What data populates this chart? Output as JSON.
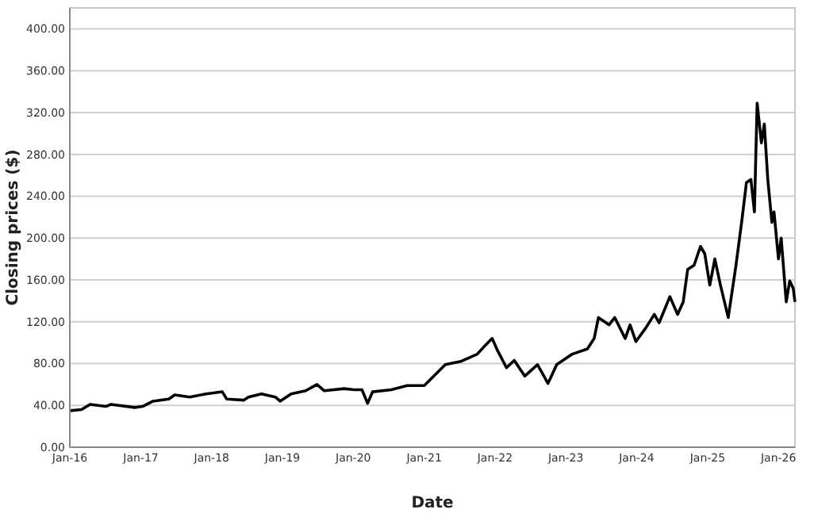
{
  "chart_data": {
    "type": "line",
    "xlabel": "Date",
    "ylabel": "Closing prices ($)",
    "xlim": [
      "2016-01-01",
      "2026-03-27"
    ],
    "ylim": [
      0,
      420
    ],
    "xticks": [
      {
        "value": "2016-01-01",
        "label": "Jan-16"
      },
      {
        "value": "2017-01-01",
        "label": "Jan-17"
      },
      {
        "value": "2018-01-01",
        "label": "Jan-18"
      },
      {
        "value": "2019-01-01",
        "label": "Jan-19"
      },
      {
        "value": "2020-01-01",
        "label": "Jan-20"
      },
      {
        "value": "2021-01-01",
        "label": "Jan-21"
      },
      {
        "value": "2022-01-01",
        "label": "Jan-22"
      },
      {
        "value": "2023-01-01",
        "label": "Jan-23"
      },
      {
        "value": "2024-01-01",
        "label": "Jan-24"
      },
      {
        "value": "2025-01-01",
        "label": "Jan-25"
      },
      {
        "value": "2026-01-01",
        "label": "Jan-26"
      }
    ],
    "yticks": [
      {
        "value": 0,
        "label": "0.00"
      },
      {
        "value": 40,
        "label": "40.00"
      },
      {
        "value": 80,
        "label": "80.00"
      },
      {
        "value": 120,
        "label": "120.00"
      },
      {
        "value": 160,
        "label": "160.00"
      },
      {
        "value": 200,
        "label": "200.00"
      },
      {
        "value": 240,
        "label": "240.00"
      },
      {
        "value": 280,
        "label": "280.00"
      },
      {
        "value": 320,
        "label": "320.00"
      },
      {
        "value": 360,
        "label": "360.00"
      },
      {
        "value": 400,
        "label": "400.00"
      }
    ],
    "grid": "y",
    "marker": "none",
    "line_style": "solid",
    "x": [
      "2016-01-04",
      "2016-03-01",
      "2016-04-15",
      "2016-07-05",
      "2016-08-01",
      "2016-12-01",
      "2017-01-10",
      "2017-03-05",
      "2017-05-25",
      "2017-06-25",
      "2017-09-10",
      "2017-12-05",
      "2018-02-25",
      "2018-03-20",
      "2018-06-15",
      "2018-07-10",
      "2018-09-15",
      "2018-11-25",
      "2018-12-20",
      "2019-02-15",
      "2019-05-01",
      "2019-06-28",
      "2019-08-05",
      "2019-11-15",
      "2020-01-05",
      "2020-02-15",
      "2020-03-15",
      "2020-04-10",
      "2020-07-15",
      "2020-10-05",
      "2021-01-01",
      "2021-04-20",
      "2021-07-08",
      "2021-10-01",
      "2021-11-10",
      "2021-12-17",
      "2022-01-15",
      "2022-03-01",
      "2022-04-10",
      "2022-06-03",
      "2022-08-08",
      "2022-10-01",
      "2022-11-15",
      "2023-02-03",
      "2023-04-22",
      "2023-05-27",
      "2023-06-18",
      "2023-08-12",
      "2023-09-10",
      "2023-11-03",
      "2023-11-28",
      "2023-12-28",
      "2024-02-17",
      "2024-04-01",
      "2024-04-26",
      "2024-06-20",
      "2024-07-30",
      "2024-08-28",
      "2024-09-20",
      "2024-10-23",
      "2024-11-25",
      "2024-12-17",
      "2025-01-12",
      "2025-02-07",
      "2025-03-08",
      "2025-04-17",
      "2025-05-27",
      "2025-06-25",
      "2025-07-20",
      "2025-08-12",
      "2025-08-30",
      "2025-09-13",
      "2025-10-05",
      "2025-10-20",
      "2025-11-07",
      "2025-11-28",
      "2025-12-09",
      "2026-01-01",
      "2026-01-15",
      "2026-02-10",
      "2026-02-28",
      "2026-03-18",
      "2026-03-27"
    ],
    "series": [
      {
        "color": "#000000",
        "values": [
          35,
          36,
          41,
          39,
          41,
          38,
          39,
          44,
          46,
          50,
          48,
          51,
          53,
          46,
          45,
          48,
          51,
          48,
          44,
          51,
          54,
          60,
          54,
          56,
          55,
          55,
          42,
          53,
          55,
          59,
          59,
          79,
          82,
          89,
          97,
          104,
          92,
          76,
          83,
          68,
          79,
          61,
          79,
          89,
          94,
          104,
          124,
          117,
          124,
          104,
          117,
          101,
          114,
          127,
          119,
          144,
          127,
          139,
          170,
          174,
          192,
          185,
          155,
          180,
          155,
          124,
          174,
          215,
          253,
          256,
          225,
          329,
          291,
          309,
          256,
          215,
          225,
          180,
          200,
          139,
          159,
          152,
          139
        ]
      }
    ]
  }
}
